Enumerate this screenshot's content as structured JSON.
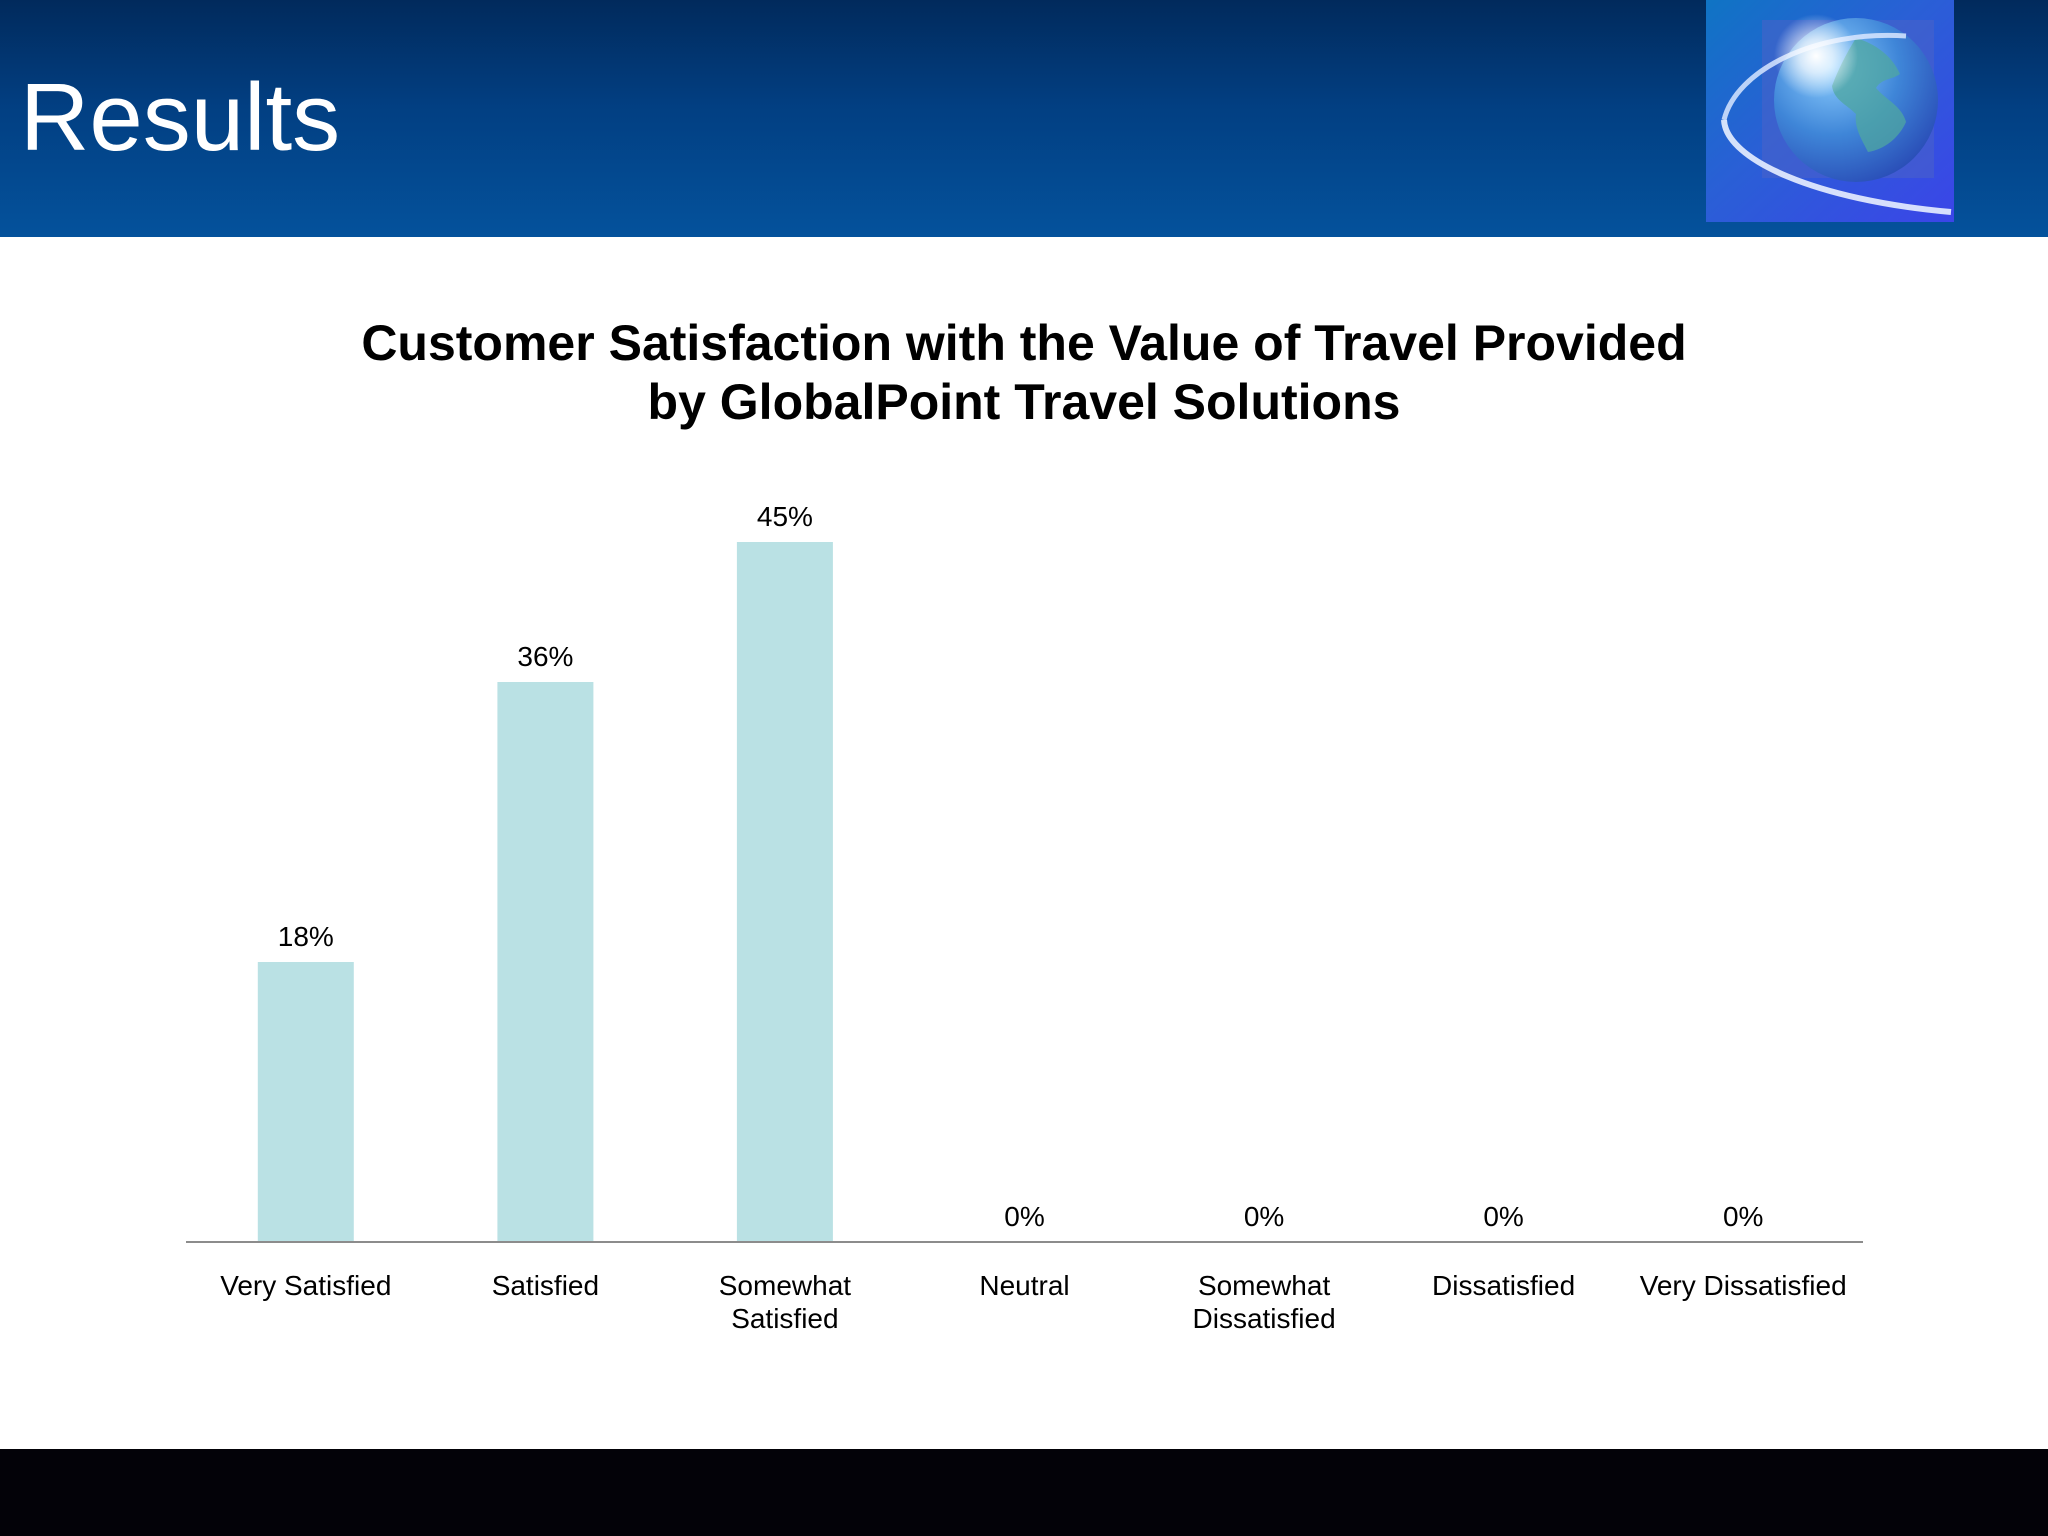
{
  "slide": {
    "title": "Results"
  },
  "colors": {
    "header_top": "#012a5c",
    "header_bottom": "#04529c",
    "bar": "#bae1e4",
    "axis": "#8c8c8c",
    "footer": "#030208"
  },
  "chart_data": {
    "type": "bar",
    "title": "Customer Satisfaction with the Value of Travel Provided by GlobalPoint Travel Solutions",
    "title_lines": [
      "Customer Satisfaction with the Value of Travel Provided",
      "by GlobalPoint Travel Solutions"
    ],
    "categories": [
      "Very Satisfied",
      "Satisfied",
      "Somewhat Satisfied",
      "Neutral",
      "Somewhat Dissatisfied",
      "Dissatisfied",
      "Very Dissatisfied"
    ],
    "category_label_lines": [
      [
        "Very Satisfied"
      ],
      [
        "Satisfied"
      ],
      [
        "Somewhat",
        "Satisfied"
      ],
      [
        "Neutral"
      ],
      [
        "Somewhat",
        "Dissatisfied"
      ],
      [
        "Dissatisfied"
      ],
      [
        "Very Dissatisfied"
      ]
    ],
    "values": [
      18,
      36,
      45,
      0,
      0,
      0,
      0
    ],
    "data_labels": [
      "18%",
      "36%",
      "45%",
      "0%",
      "0%",
      "0%",
      "0%"
    ],
    "unit": "%",
    "ylim": [
      0,
      45
    ],
    "grid": false,
    "legend": "none",
    "xlabel": "",
    "ylabel": ""
  }
}
